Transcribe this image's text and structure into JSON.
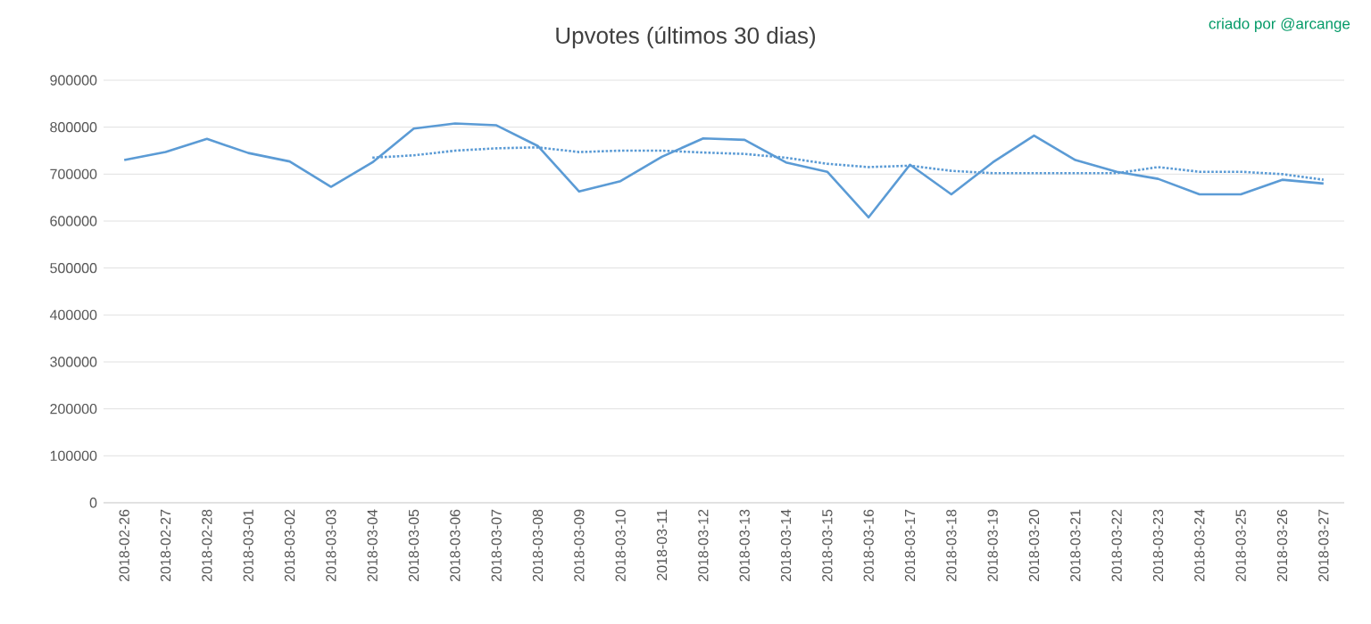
{
  "chart_data": {
    "type": "line",
    "title": "Upvotes (últimos 30 dias)",
    "annotations": [
      "criado por @arcange"
    ],
    "categories": [
      "2018-02-26",
      "2018-02-27",
      "2018-02-28",
      "2018-03-01",
      "2018-03-02",
      "2018-03-03",
      "2018-03-04",
      "2018-03-05",
      "2018-03-06",
      "2018-03-07",
      "2018-03-08",
      "2018-03-09",
      "2018-03-10",
      "2018-03-11",
      "2018-03-12",
      "2018-03-13",
      "2018-03-14",
      "2018-03-15",
      "2018-03-16",
      "2018-03-17",
      "2018-03-18",
      "2018-03-19",
      "2018-03-20",
      "2018-03-21",
      "2018-03-22",
      "2018-03-23",
      "2018-03-24",
      "2018-03-25",
      "2018-03-26",
      "2018-03-27"
    ],
    "series": [
      {
        "color": "#5b9bd5",
        "line_style": "solid",
        "values": [
          730000,
          747000,
          775000,
          745000,
          727000,
          673000,
          725000,
          797000,
          808000,
          804000,
          760000,
          663000,
          685000,
          737000,
          776000,
          773000,
          725000,
          705000,
          608000,
          720000,
          657000,
          725000,
          782000,
          730000,
          705000,
          690000,
          657000,
          657000,
          688000,
          680000
        ]
      },
      {
        "color": "#5b9bd5",
        "line_style": "dotted",
        "values": [
          null,
          null,
          null,
          null,
          null,
          null,
          735000,
          740000,
          750000,
          755000,
          757000,
          747000,
          750000,
          750000,
          746000,
          743000,
          735000,
          722000,
          715000,
          718000,
          707000,
          702000,
          702000,
          702000,
          702000,
          715000,
          705000,
          705000,
          700000,
          688000
        ]
      }
    ],
    "ylim": [
      0,
      900000
    ],
    "yticks": [
      0,
      100000,
      200000,
      300000,
      400000,
      500000,
      600000,
      700000,
      800000,
      900000
    ],
    "grid": "y",
    "marker": "none"
  }
}
